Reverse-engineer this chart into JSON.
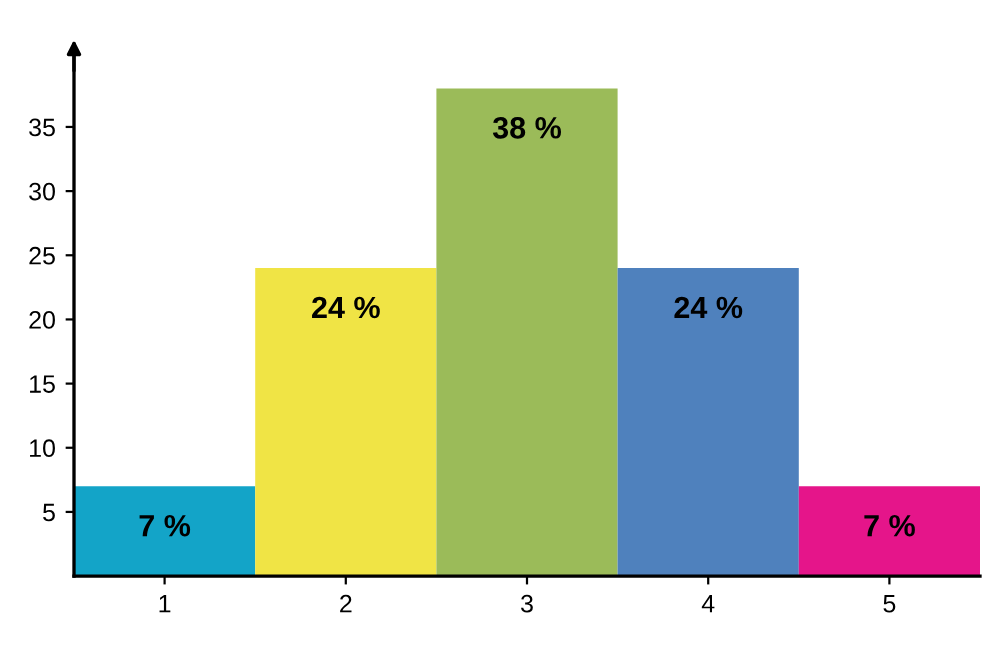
{
  "chart_data": {
    "type": "bar",
    "categories": [
      "1",
      "2",
      "3",
      "4",
      "5"
    ],
    "values": [
      7,
      24,
      38,
      24,
      7
    ],
    "colors": [
      "#13a4c8",
      "#f0e445",
      "#9bbb59",
      "#4f81bd",
      "#e5158a"
    ],
    "value_labels": [
      "7 %",
      "24 %",
      "38 %",
      "24 %",
      "7 %"
    ],
    "ylim": [
      0,
      41
    ],
    "yticks": [
      5,
      10,
      15,
      20,
      25,
      30,
      35
    ],
    "grid": false
  }
}
